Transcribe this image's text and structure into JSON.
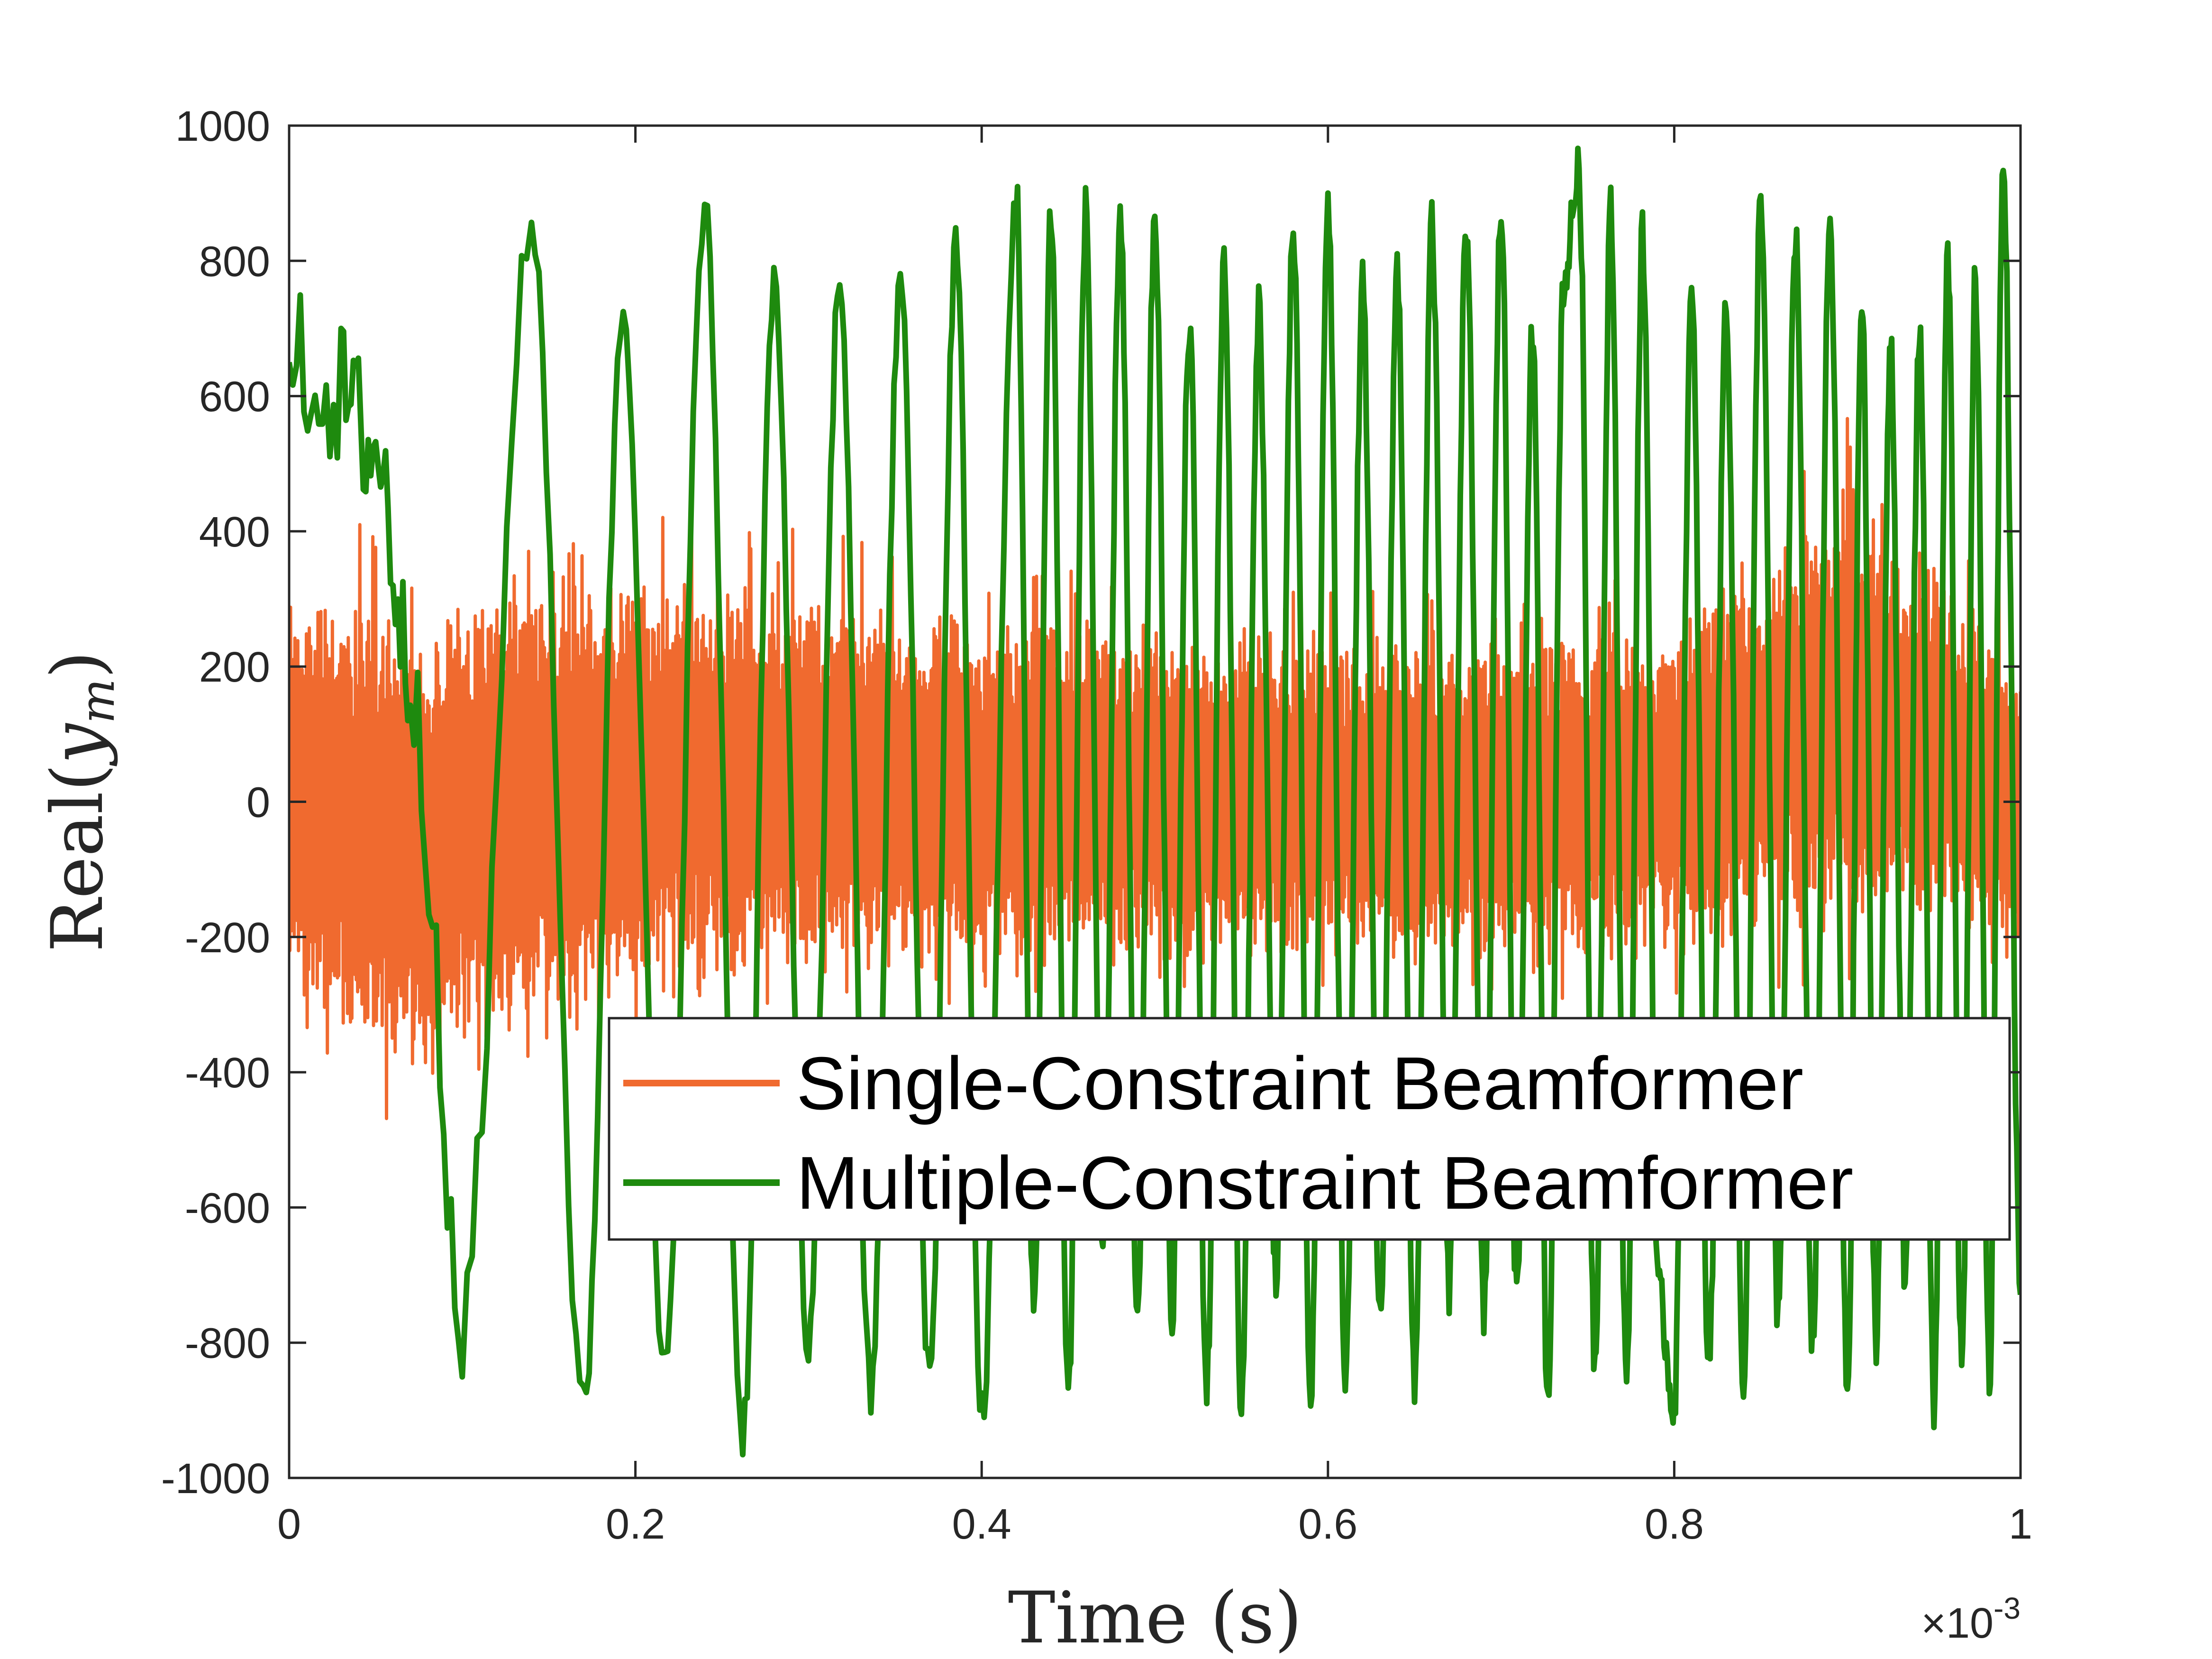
{
  "chart_data": {
    "type": "line",
    "title": "",
    "xlabel": "Time (s)",
    "ylabel_prefix": "Real(",
    "ylabel_var": "y",
    "ylabel_sub": "m",
    "ylabel_suffix": ")",
    "x_exponent_label": "×10",
    "x_exponent": "-3",
    "xlim": [
      0,
      1
    ],
    "ylim": [
      -1000,
      1000
    ],
    "xticks": [
      0,
      0.2,
      0.4,
      0.6,
      0.8,
      1
    ],
    "xtick_labels": [
      "0",
      "0.2",
      "0.4",
      "0.6",
      "0.8",
      "1"
    ],
    "yticks": [
      -1000,
      -800,
      -600,
      -400,
      -200,
      0,
      200,
      400,
      600,
      800,
      1000
    ],
    "ytick_labels": [
      "-1000",
      "-800",
      "-600",
      "-400",
      "-200",
      "0",
      "200",
      "400",
      "600",
      "800",
      "1000"
    ],
    "grid": false,
    "legend_position": "lower-right",
    "colors": {
      "single": "#f06a2f",
      "multiple": "#1e8a0e",
      "axis": "#262626"
    },
    "series": [
      {
        "name": "Single-Constraint Beamformer",
        "color": "#f06a2f",
        "envelope": [
          {
            "x": 0.0,
            "max": 420,
            "min": -380
          },
          {
            "x": 0.03,
            "max": 420,
            "min": -460
          },
          {
            "x": 0.08,
            "max": 380,
            "min": -510
          },
          {
            "x": 0.12,
            "max": 450,
            "min": -470
          },
          {
            "x": 0.16,
            "max": 450,
            "min": -420
          },
          {
            "x": 0.26,
            "max": 420,
            "min": -350
          },
          {
            "x": 0.4,
            "max": 360,
            "min": -330
          },
          {
            "x": 0.6,
            "max": 320,
            "min": -310
          },
          {
            "x": 0.8,
            "max": 340,
            "min": -300
          },
          {
            "x": 0.9,
            "max": 580,
            "min": -280
          },
          {
            "x": 1.0,
            "max": 300,
            "min": -300
          }
        ]
      },
      {
        "name": "Multiple-Constraint Beamformer",
        "color": "#1e8a0e",
        "oscillation": [
          {
            "x": 0.0,
            "value": 650
          },
          {
            "x": 0.03,
            "value": 600
          },
          {
            "x": 0.05,
            "value": 520
          },
          {
            "x": 0.07,
            "value": 200
          },
          {
            "x": 0.1,
            "value": -780
          },
          {
            "x": 0.14,
            "value": 850
          },
          {
            "x": 0.17,
            "value": -900
          },
          {
            "x": 0.193,
            "value": 730
          },
          {
            "x": 0.217,
            "value": -850
          },
          {
            "x": 0.24,
            "value": 870
          },
          {
            "x": 0.262,
            "value": -930
          },
          {
            "x": 0.28,
            "value": 750
          },
          {
            "x": 0.3,
            "value": -810
          },
          {
            "x": 0.318,
            "value": 770
          },
          {
            "x": 0.336,
            "value": -880
          },
          {
            "x": 0.353,
            "value": 770
          },
          {
            "x": 0.37,
            "value": -850
          },
          {
            "x": 0.385,
            "value": 820
          },
          {
            "x": 0.4,
            "value": -910
          },
          {
            "x": 0.42,
            "value": 900
          },
          {
            "x": 0.45,
            "value": -880
          },
          {
            "x": 0.5,
            "value": 870
          },
          {
            "x": 0.55,
            "value": -900
          },
          {
            "x": 0.6,
            "value": 880
          },
          {
            "x": 0.65,
            "value": -870
          },
          {
            "x": 0.7,
            "value": 880
          },
          {
            "x": 0.745,
            "value": 930
          },
          {
            "x": 0.8,
            "value": -890
          },
          {
            "x": 0.85,
            "value": 900
          },
          {
            "x": 0.9,
            "value": -870
          },
          {
            "x": 0.95,
            "value": -900
          },
          {
            "x": 0.99,
            "value": 930
          },
          {
            "x": 1.0,
            "value": -720
          }
        ]
      }
    ]
  }
}
